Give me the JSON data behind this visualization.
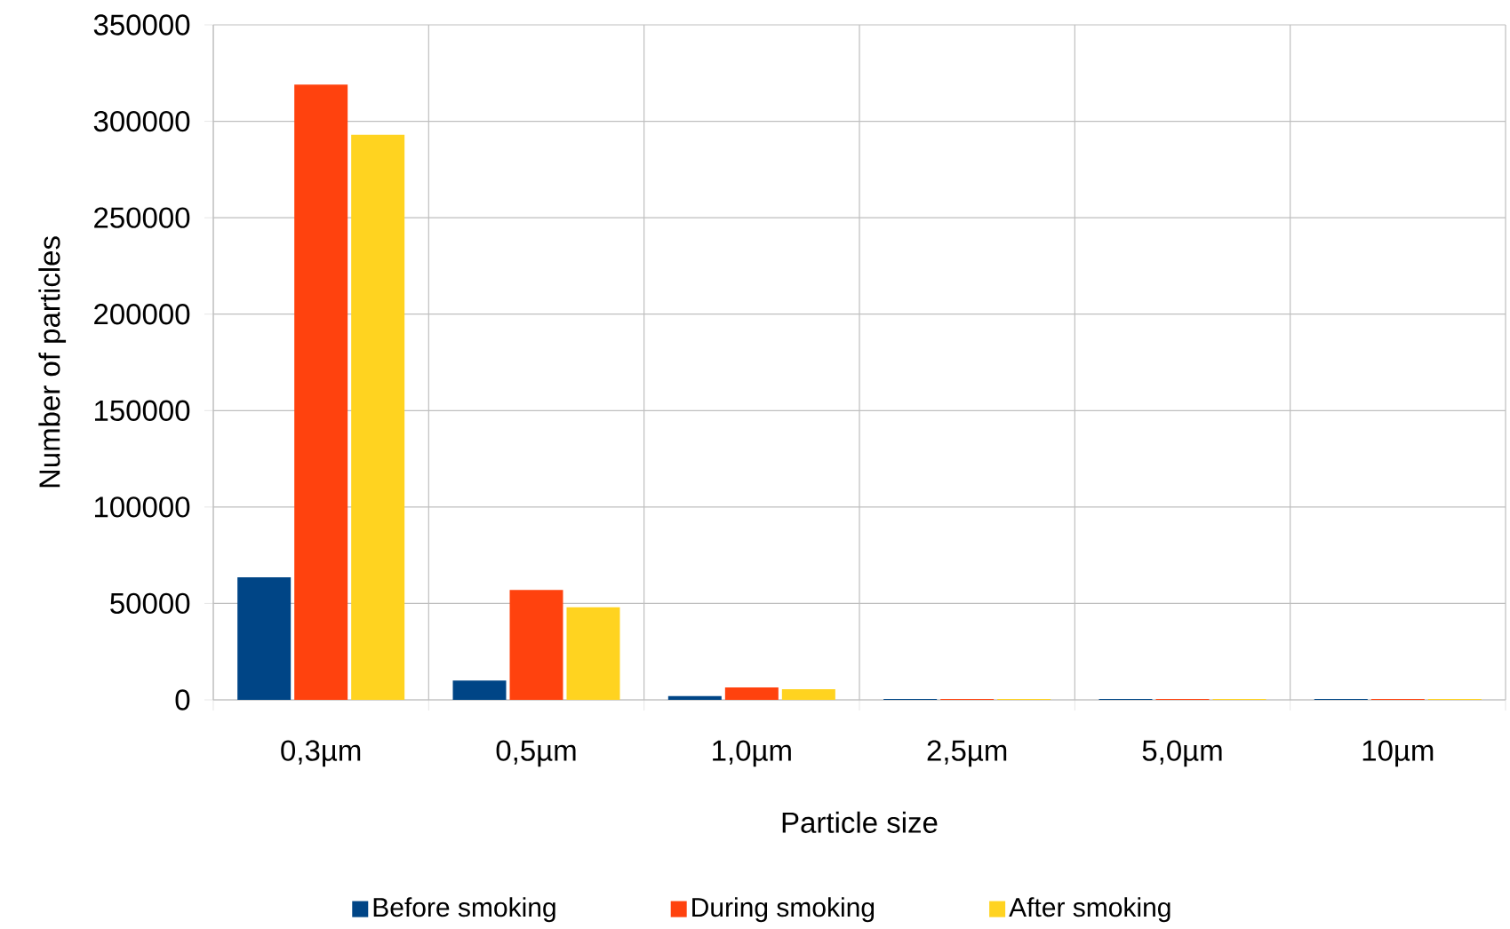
{
  "chart_data": {
    "type": "bar",
    "xlabel": "Particle size",
    "ylabel": "Number of particles",
    "categories": [
      "0,3µm",
      "0,5µm",
      "1,0µm",
      "2,5µm",
      "5,0µm",
      "10µm"
    ],
    "series": [
      {
        "name": "Before smoking",
        "color": "#004586",
        "values": [
          63500,
          10000,
          2000,
          500,
          500,
          500
        ]
      },
      {
        "name": "During smoking",
        "color": "#ff420e",
        "values": [
          319000,
          57000,
          6500,
          500,
          500,
          500
        ]
      },
      {
        "name": "After smoking",
        "color": "#ffd320",
        "values": [
          293000,
          48000,
          5500,
          500,
          500,
          500
        ]
      }
    ],
    "ylim": [
      0,
      350000
    ],
    "yticks": [
      0,
      50000,
      100000,
      150000,
      200000,
      250000,
      300000,
      350000
    ],
    "grid": true,
    "legend": "bottom"
  }
}
